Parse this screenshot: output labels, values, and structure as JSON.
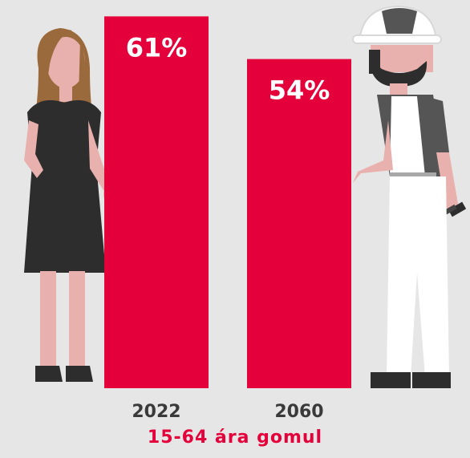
{
  "chart_data": {
    "type": "bar",
    "categories": [
      "2022",
      "2060"
    ],
    "values": [
      61,
      54
    ],
    "value_labels": [
      "61%",
      "54%"
    ],
    "unit": "%",
    "xlabel": "15-64 ára gomul",
    "ylabel": "",
    "title": "",
    "grid": false,
    "legend": "none"
  },
  "colors": {
    "bar": "#e4003b",
    "background": "#e6e6e6",
    "tick_text": "#3a3a3a",
    "axis_title": "#e4003b",
    "bar_label": "#ffffff"
  },
  "illustrations": [
    "woman-in-black-dress-icon",
    "painter-worker-icon"
  ]
}
